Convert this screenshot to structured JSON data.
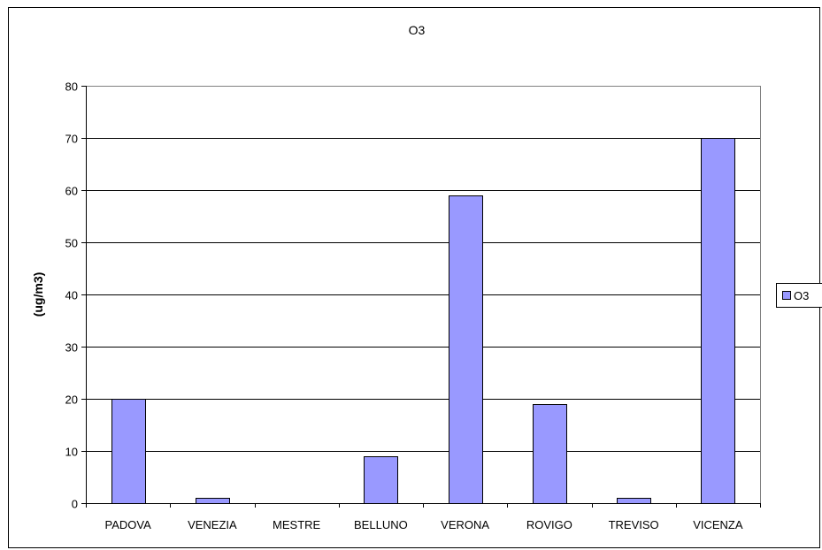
{
  "chart_data": {
    "type": "bar",
    "title": "O3",
    "xlabel": "",
    "ylabel": "(ug/m3)",
    "categories": [
      "PADOVA",
      "VENEZIA",
      "MESTRE",
      "BELLUNO",
      "VERONA",
      "ROVIGO",
      "TREVISO",
      "VICENZA"
    ],
    "series": [
      {
        "name": "O3",
        "values": [
          20,
          1,
          0,
          9,
          59,
          19,
          1,
          70
        ]
      }
    ],
    "ylim": [
      0,
      80
    ],
    "yticks": [
      "0",
      "10",
      "20",
      "30",
      "40",
      "50",
      "60",
      "70",
      "80"
    ],
    "grid": true,
    "legend_position": "right",
    "colors": {
      "bar_fill": "#9999ff",
      "bar_stroke": "#000000",
      "gridline": "#000000",
      "background": "#ffffff"
    }
  }
}
